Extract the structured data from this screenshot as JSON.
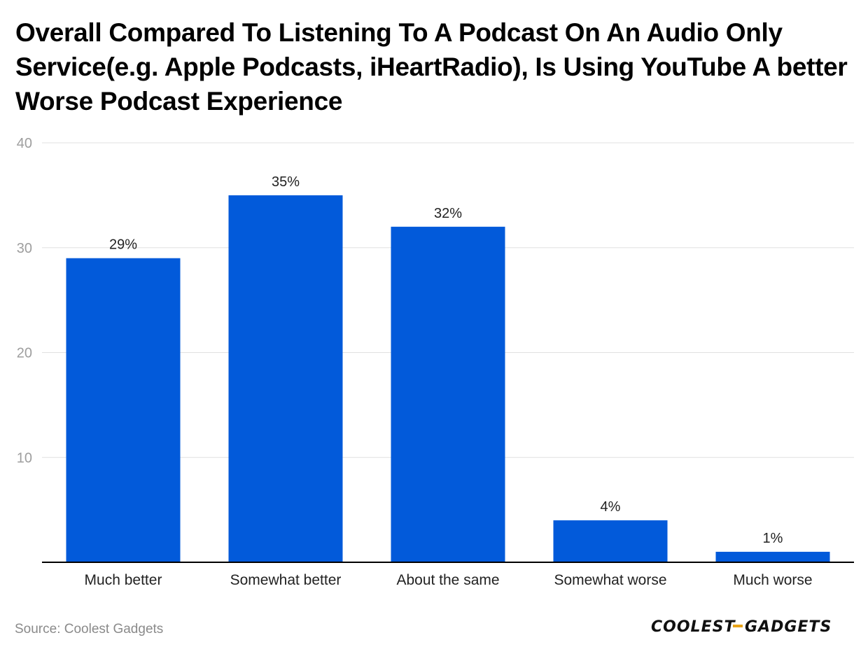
{
  "title": "Overall Compared To Listening To A Podcast On An Audio Only Service(e.g. Apple Podcasts, iHeartRadio), Is Using YouTube A better Worse Podcast Experience",
  "source": "Source: Coolest Gadgets",
  "logo": {
    "left_text": "COOLEST",
    "right_text": "GADGETS",
    "accent_color": "#e8a317"
  },
  "colors": {
    "bar": "#025ADA",
    "grid": "#e0e0e0",
    "axis": "#000000",
    "tick_label": "#9e9e9e",
    "category_label": "#222222",
    "data_label": "#222222"
  },
  "chart_data": {
    "type": "bar",
    "title": "Overall Compared To Listening To A Podcast On An Audio Only Service(e.g. Apple Podcasts, iHeartRadio), Is Using YouTube A better Worse Podcast Experience",
    "categories": [
      "Much better",
      "Somewhat better",
      "About the same",
      "Somewhat worse",
      "Much worse"
    ],
    "values": [
      29,
      35,
      32,
      4,
      1
    ],
    "data_labels": [
      "29%",
      "35%",
      "32%",
      "4%",
      "1%"
    ],
    "yticks": [
      10,
      20,
      30,
      40
    ],
    "ylim": [
      0,
      40
    ],
    "xlabel": "",
    "ylabel": "",
    "grid": true
  }
}
